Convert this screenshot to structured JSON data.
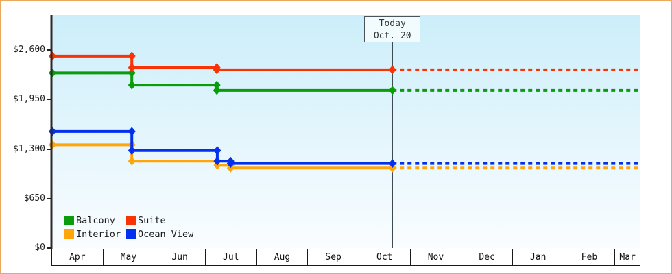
{
  "frame": {
    "border_color": "#e9aa5e",
    "background": "#ffffff"
  },
  "chart_data": {
    "type": "line",
    "title": "",
    "xlabel": "",
    "ylabel": "",
    "x_axis": {
      "months": [
        "Apr",
        "May",
        "Jun",
        "Jul",
        "Aug",
        "Sep",
        "Oct",
        "Nov",
        "Dec",
        "Jan",
        "Feb",
        "Mar"
      ]
    },
    "y_axis": {
      "tick_labels": [
        "$0",
        "$650",
        "$1,300",
        "$1,950",
        "$2,600"
      ],
      "tick_values": [
        0,
        650,
        1300,
        1950,
        2600
      ],
      "ylim": [
        0,
        3060
      ],
      "unit": "USD"
    },
    "xlim_months": [
      0,
      11.47
    ],
    "today": {
      "line1": "Today",
      "line2": "Oct. 20",
      "x_months": 6.64
    },
    "projection_style": "dashed_after_today",
    "plot_background_gradient": [
      "#cceefa",
      "#fafdff"
    ],
    "series": [
      {
        "name": "Interior",
        "color": "#ffa60a",
        "points": [
          [
            0,
            1355
          ],
          [
            1.55,
            1355
          ],
          [
            1.55,
            1140
          ],
          [
            3.22,
            1140
          ],
          [
            3.22,
            1085
          ],
          [
            3.48,
            1085
          ],
          [
            3.48,
            1050
          ],
          [
            6.64,
            1050
          ]
        ]
      },
      {
        "name": "Ocean View",
        "color": "#0330ee",
        "points": [
          [
            0,
            1530
          ],
          [
            1.55,
            1530
          ],
          [
            1.55,
            1280
          ],
          [
            3.22,
            1280
          ],
          [
            3.22,
            1140
          ],
          [
            3.48,
            1140
          ],
          [
            3.48,
            1110
          ],
          [
            6.64,
            1110
          ]
        ]
      },
      {
        "name": "Balcony",
        "color": "#0a9c0a",
        "points": [
          [
            0,
            2300
          ],
          [
            1.55,
            2300
          ],
          [
            1.55,
            2140
          ],
          [
            3.21,
            2140
          ],
          [
            3.21,
            2070
          ],
          [
            6.64,
            2070
          ]
        ]
      },
      {
        "name": "Suite",
        "color": "#fa3305",
        "points": [
          [
            0,
            2520
          ],
          [
            1.55,
            2520
          ],
          [
            1.55,
            2370
          ],
          [
            3.21,
            2370
          ],
          [
            3.21,
            2340
          ],
          [
            6.64,
            2340
          ]
        ]
      }
    ]
  },
  "legend": {
    "items": [
      {
        "label": "Balcony",
        "color": "#0a9c0a"
      },
      {
        "label": "Suite",
        "color": "#fa3305"
      },
      {
        "label": "Interior",
        "color": "#ffa60a"
      },
      {
        "label": "Ocean View",
        "color": "#0330ee"
      }
    ]
  }
}
